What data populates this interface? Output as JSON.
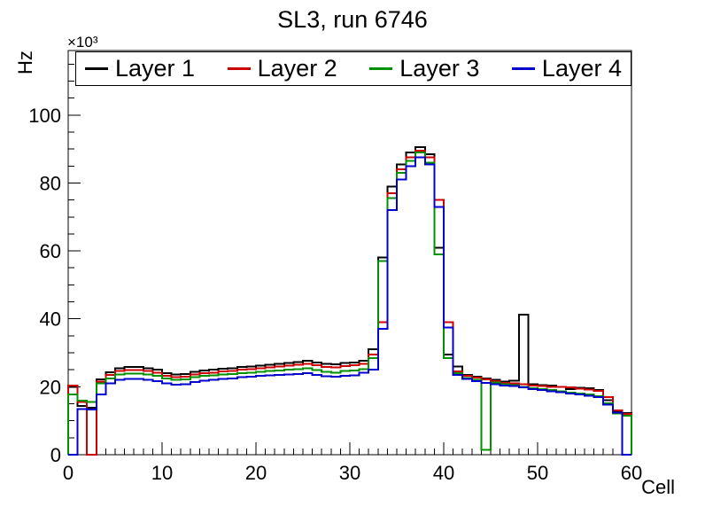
{
  "title": "SL3, run 6746",
  "axes": {
    "x": {
      "label": "Cell",
      "min": 0,
      "max": 60,
      "major_ticks": [
        0,
        10,
        20,
        30,
        40,
        50,
        60
      ],
      "minor_step": 1
    },
    "y": {
      "label": "Hz",
      "multiplier": "×10³",
      "min": 0,
      "max": 119,
      "major_ticks": [
        0,
        20,
        40,
        60,
        80,
        100
      ],
      "minor_step": 5
    }
  },
  "legend": {
    "items": [
      {
        "label": "Layer 1",
        "color": "#000000"
      },
      {
        "label": "Layer 2",
        "color": "#cc0000"
      },
      {
        "label": "Layer 3",
        "color": "#009100"
      },
      {
        "label": "Layer 4",
        "color": "#0000cc"
      }
    ]
  },
  "chart_data": {
    "type": "step-histogram",
    "title": "SL3, run 6746",
    "xlabel": "Cell",
    "ylabel": "Hz",
    "y_unit_multiplier": 1000,
    "bin_width": 1,
    "x_range": [
      0,
      60
    ],
    "y_range": [
      0,
      119
    ],
    "grid": false,
    "legend_position": "top",
    "series": [
      {
        "name": "Layer 1",
        "color": "#000000",
        "values": [
          20.0,
          14.3,
          13.8,
          22.2,
          24.3,
          25.5,
          25.8,
          25.8,
          25.5,
          25.0,
          24.0,
          23.6,
          23.8,
          24.4,
          24.8,
          25.0,
          25.3,
          25.5,
          25.8,
          26.0,
          26.2,
          26.5,
          26.8,
          27.0,
          27.3,
          27.7,
          27.2,
          26.8,
          26.6,
          27.0,
          27.2,
          27.7,
          31.0,
          58.0,
          79.0,
          85.5,
          89.0,
          90.5,
          88.5,
          61.0,
          29.5,
          26.0,
          23.5,
          23.0,
          22.5,
          22.0,
          21.5,
          21.8,
          41.2,
          20.8,
          20.5,
          20.3,
          20.0,
          19.3,
          19.7,
          19.6,
          19.0,
          16.0,
          12.8,
          12.3
        ]
      },
      {
        "name": "Layer 2",
        "color": "#cc0000",
        "values": [
          20.3,
          15.5,
          0.0,
          21.5,
          23.5,
          24.6,
          24.9,
          24.9,
          24.6,
          24.2,
          23.2,
          22.8,
          23.0,
          23.6,
          24.0,
          24.2,
          24.5,
          24.7,
          25.0,
          25.2,
          25.4,
          25.7,
          26.0,
          26.2,
          26.5,
          26.8,
          26.3,
          25.9,
          25.7,
          26.1,
          26.3,
          26.8,
          29.5,
          39.0,
          77.0,
          84.0,
          87.5,
          89.5,
          87.5,
          75.0,
          39.0,
          24.5,
          23.2,
          22.7,
          22.2,
          21.7,
          21.2,
          21.0,
          20.8,
          20.4,
          20.2,
          20.0,
          19.9,
          19.8,
          19.5,
          19.2,
          18.8,
          17.0,
          13.0,
          12.0
        ]
      },
      {
        "name": "Layer 3",
        "color": "#009100",
        "values": [
          17.7,
          15.9,
          15.5,
          21.0,
          22.5,
          23.6,
          23.9,
          23.9,
          23.6,
          23.2,
          22.4,
          22.0,
          22.2,
          22.8,
          23.2,
          23.4,
          23.6,
          23.8,
          24.0,
          24.2,
          24.4,
          24.6,
          24.8,
          25.0,
          25.2,
          25.4,
          24.9,
          24.4,
          24.2,
          24.6,
          24.8,
          25.2,
          28.5,
          57.0,
          75.5,
          83.0,
          86.5,
          89.0,
          86.0,
          59.0,
          28.5,
          24.0,
          22.6,
          22.0,
          1.5,
          21.3,
          20.8,
          20.5,
          20.0,
          19.6,
          19.3,
          19.0,
          18.7,
          18.3,
          18.0,
          17.7,
          17.2,
          15.2,
          12.2,
          11.5
        ]
      },
      {
        "name": "Layer 4",
        "color": "#0000cc",
        "values": [
          0.0,
          13.5,
          13.3,
          17.7,
          21.0,
          22.0,
          22.3,
          22.3,
          22.0,
          21.6,
          21.0,
          20.6,
          20.8,
          21.4,
          21.8,
          22.0,
          22.3,
          22.5,
          22.8,
          23.0,
          23.2,
          23.3,
          23.5,
          23.6,
          23.8,
          24.0,
          23.5,
          23.1,
          22.9,
          23.2,
          23.4,
          24.2,
          25.0,
          37.0,
          72.0,
          81.0,
          85.0,
          87.5,
          85.5,
          73.0,
          37.5,
          23.5,
          22.3,
          21.7,
          21.2,
          20.8,
          20.4,
          20.2,
          19.8,
          19.3,
          19.0,
          18.7,
          18.4,
          18.0,
          17.7,
          17.4,
          16.9,
          14.8,
          12.4,
          0.0
        ]
      }
    ]
  }
}
